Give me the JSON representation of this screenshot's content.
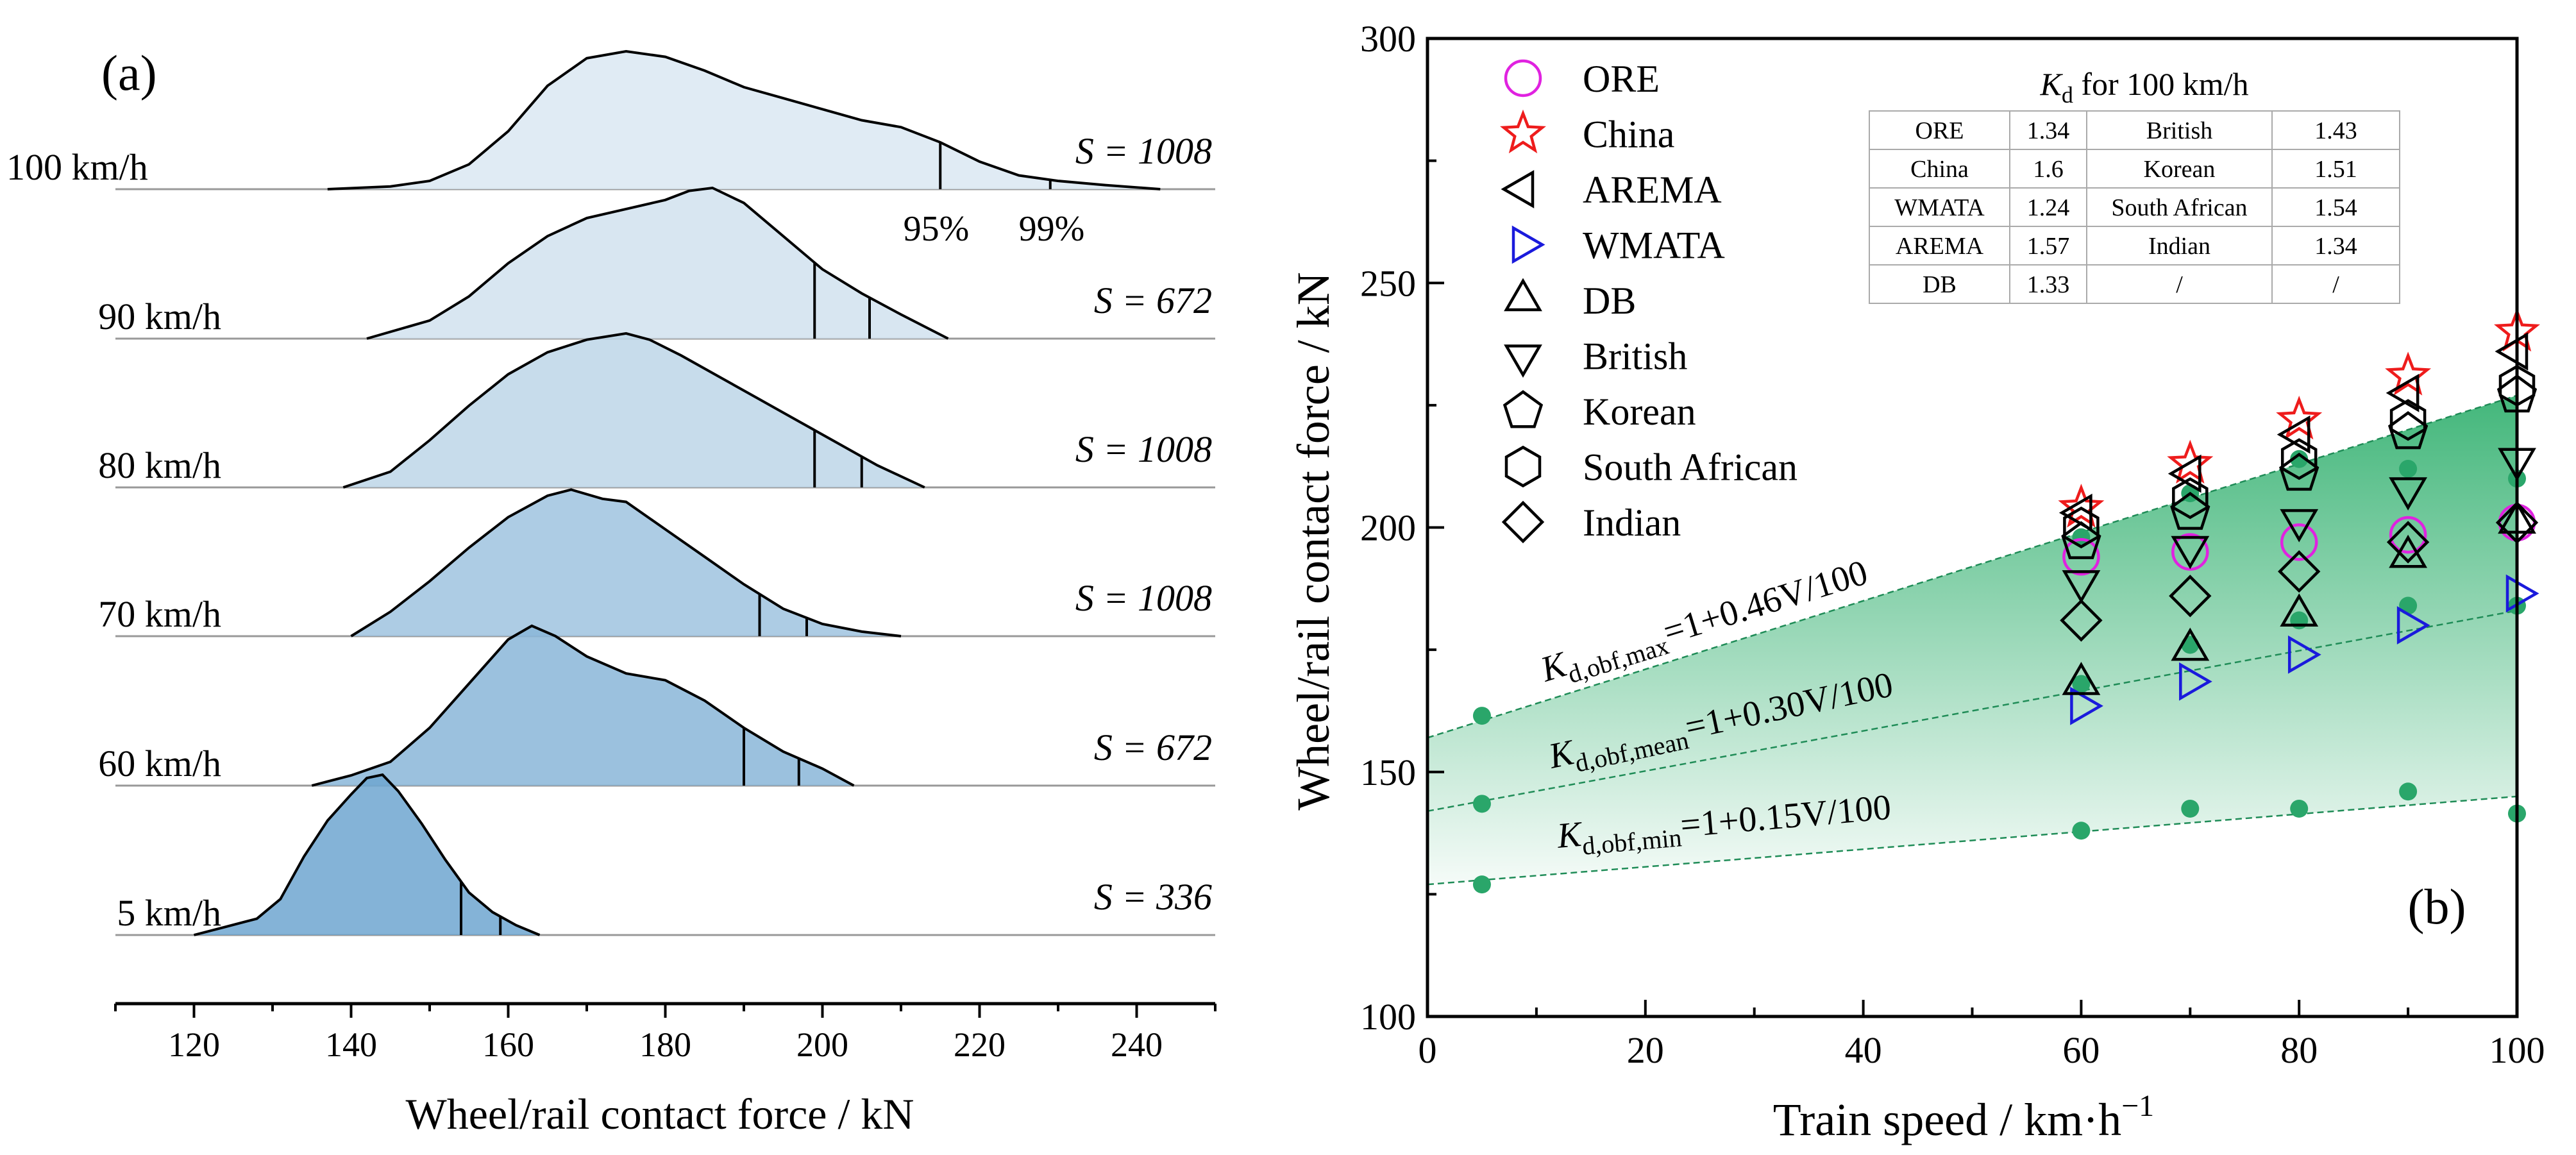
{
  "chart_data": [
    {
      "type": "area",
      "panel_label": "(a)",
      "xlabel": "Wheel/rail contact force / kN",
      "xlim": [
        110,
        250
      ],
      "xticks": [
        120,
        140,
        160,
        180,
        200,
        220,
        240
      ],
      "fill_colors": {
        "100": "#dbe8f2",
        "90": "#d1e2ee",
        "80": "#bdd6e8",
        "70": "#9fc3df",
        "60": "#89b6d8",
        "5": "#6fa6d0"
      },
      "percentile_labels": [
        "95%",
        "99%"
      ],
      "series": [
        {
          "name": "100 km/h",
          "S": "S = 1008",
          "range": [
            137,
            243
          ],
          "p95": 215,
          "p99": 229,
          "curve": [
            [
              137,
              0
            ],
            [
              145,
              0.02
            ],
            [
              150,
              0.06
            ],
            [
              155,
              0.18
            ],
            [
              160,
              0.42
            ],
            [
              165,
              0.75
            ],
            [
              170,
              0.95
            ],
            [
              175,
              1.0
            ],
            [
              180,
              0.96
            ],
            [
              185,
              0.86
            ],
            [
              190,
              0.74
            ],
            [
              195,
              0.66
            ],
            [
              200,
              0.58
            ],
            [
              205,
              0.5
            ],
            [
              210,
              0.45
            ],
            [
              215,
              0.34
            ],
            [
              220,
              0.2
            ],
            [
              225,
              0.1
            ],
            [
              230,
              0.06
            ],
            [
              236,
              0.03
            ],
            [
              243,
              0
            ]
          ]
        },
        {
          "name": "90 km/h",
          "S": "S = 672",
          "range": [
            142,
            216
          ],
          "p95": 199,
          "p99": 206,
          "curve": [
            [
              142,
              0
            ],
            [
              150,
              0.12
            ],
            [
              155,
              0.28
            ],
            [
              160,
              0.5
            ],
            [
              165,
              0.68
            ],
            [
              170,
              0.8
            ],
            [
              175,
              0.86
            ],
            [
              180,
              0.92
            ],
            [
              183,
              0.98
            ],
            [
              186,
              1.0
            ],
            [
              190,
              0.9
            ],
            [
              195,
              0.68
            ],
            [
              200,
              0.46
            ],
            [
              205,
              0.3
            ],
            [
              210,
              0.16
            ],
            [
              216,
              0
            ]
          ]
        },
        {
          "name": "80 km/h",
          "S": "S = 1008",
          "range": [
            139,
            213
          ],
          "p95": 199,
          "p99": 205,
          "curve": [
            [
              139,
              0
            ],
            [
              145,
              0.1
            ],
            [
              150,
              0.3
            ],
            [
              155,
              0.52
            ],
            [
              160,
              0.72
            ],
            [
              165,
              0.86
            ],
            [
              170,
              0.94
            ],
            [
              175,
              0.98
            ],
            [
              178,
              0.94
            ],
            [
              182,
              0.84
            ],
            [
              187,
              0.7
            ],
            [
              192,
              0.56
            ],
            [
              197,
              0.42
            ],
            [
              202,
              0.28
            ],
            [
              207,
              0.14
            ],
            [
              213,
              0
            ]
          ]
        },
        {
          "name": "70 km/h",
          "S": "S = 1008",
          "range": [
            140,
            210
          ],
          "p95": 192,
          "p99": 198,
          "curve": [
            [
              140,
              0
            ],
            [
              145,
              0.16
            ],
            [
              150,
              0.36
            ],
            [
              155,
              0.58
            ],
            [
              160,
              0.78
            ],
            [
              165,
              0.92
            ],
            [
              168,
              0.96
            ],
            [
              172,
              0.9
            ],
            [
              175,
              0.88
            ],
            [
              180,
              0.7
            ],
            [
              185,
              0.52
            ],
            [
              190,
              0.34
            ],
            [
              195,
              0.18
            ],
            [
              200,
              0.08
            ],
            [
              205,
              0.03
            ],
            [
              210,
              0
            ]
          ]
        },
        {
          "name": "60 km/h",
          "S": "S = 672",
          "range": [
            135,
            204
          ],
          "p95": 190,
          "p99": 197,
          "curve": [
            [
              135,
              0
            ],
            [
              140,
              0.06
            ],
            [
              145,
              0.14
            ],
            [
              150,
              0.34
            ],
            [
              155,
              0.6
            ],
            [
              160,
              0.86
            ],
            [
              163,
              0.94
            ],
            [
              166,
              0.88
            ],
            [
              170,
              0.76
            ],
            [
              175,
              0.66
            ],
            [
              180,
              0.62
            ],
            [
              185,
              0.5
            ],
            [
              190,
              0.34
            ],
            [
              195,
              0.2
            ],
            [
              200,
              0.1
            ],
            [
              204,
              0
            ]
          ]
        },
        {
          "name": "5 km/h",
          "S": "S = 336",
          "range": [
            120,
            164
          ],
          "p95": 154,
          "p99": 159,
          "curve": [
            [
              120,
              0
            ],
            [
              124,
              0.05
            ],
            [
              128,
              0.1
            ],
            [
              131,
              0.22
            ],
            [
              134,
              0.48
            ],
            [
              137,
              0.7
            ],
            [
              140,
              0.86
            ],
            [
              142,
              0.96
            ],
            [
              144,
              0.98
            ],
            [
              146,
              0.88
            ],
            [
              149,
              0.68
            ],
            [
              152,
              0.46
            ],
            [
              155,
              0.26
            ],
            [
              158,
              0.14
            ],
            [
              161,
              0.06
            ],
            [
              164,
              0
            ]
          ]
        }
      ]
    },
    {
      "type": "scatter",
      "panel_label": "(b)",
      "xlabel": "Train speed / km·h",
      "xlabel_exponent": "−1",
      "ylabel": "Wheel/rail contact force / kN",
      "xlim": [
        0,
        100
      ],
      "ylim": [
        100,
        300
      ],
      "xticks": [
        0,
        20,
        40,
        60,
        80,
        100
      ],
      "yticks": [
        100,
        150,
        200,
        250,
        300
      ],
      "observed_points": {
        "x": [
          5,
          5,
          5,
          60,
          60,
          60,
          70,
          70,
          70,
          80,
          80,
          80,
          90,
          90,
          90,
          100,
          100,
          100
        ],
        "y": [
          161.5,
          143.5,
          127,
          198,
          168,
          138,
          207,
          176,
          142.5,
          214,
          181,
          142.5,
          212,
          184,
          146,
          210,
          184,
          141.5
        ],
        "color": "#2aa66a"
      },
      "fit_lines": [
        {
          "name": "max",
          "label_base": "K",
          "label_sub": "d,obf,max",
          "label_rest": "=1+0.46V/100",
          "intercept_at_0": 157,
          "at_100": 227
        },
        {
          "name": "mean",
          "label_base": "K",
          "label_sub": "d,obf,mean",
          "label_rest": "=1+0.30V/100",
          "intercept_at_0": 142,
          "at_100": 183
        },
        {
          "name": "min",
          "label_base": "K",
          "label_sub": "d,obf,min",
          "label_rest": "=1+0.15V/100",
          "intercept_at_0": 127,
          "at_100": 145
        }
      ],
      "band_color": "#39b374",
      "standards": [
        {
          "name": "ORE",
          "marker": "circle",
          "color": "#e022e0",
          "x": [
            60,
            70,
            80,
            90,
            100
          ],
          "y": [
            194,
            195,
            197,
            198.5,
            201
          ]
        },
        {
          "name": "China",
          "marker": "star",
          "color": "#ee1c1c",
          "x": [
            60,
            70,
            80,
            90,
            100
          ],
          "y": [
            204,
            213,
            222,
            231,
            240
          ]
        },
        {
          "name": "AREMA",
          "marker": "triangle-left",
          "color": "#000000",
          "x": [
            60,
            70,
            80,
            90,
            100
          ],
          "y": [
            203,
            211,
            219,
            227.5,
            236
          ]
        },
        {
          "name": "WMATA",
          "marker": "triangle-right",
          "color": "#1a1adc",
          "x": [
            60,
            70,
            80,
            90,
            100
          ],
          "y": [
            163.5,
            168.5,
            174,
            180,
            186.5
          ]
        },
        {
          "name": "DB",
          "marker": "triangle-up",
          "color": "#000000",
          "x": [
            60,
            70,
            80,
            90,
            100
          ],
          "y": [
            168,
            175,
            182,
            194,
            201
          ]
        },
        {
          "name": "British",
          "marker": "triangle-down",
          "color": "#000000",
          "x": [
            60,
            70,
            80,
            90,
            100
          ],
          "y": [
            189,
            196,
            201.5,
            208,
            214
          ]
        },
        {
          "name": "Korean",
          "marker": "pentagon",
          "color": "#000000",
          "x": [
            60,
            70,
            80,
            90,
            100
          ],
          "y": [
            197,
            203,
            211,
            219.5,
            227
          ]
        },
        {
          "name": "South African",
          "marker": "hexagon",
          "color": "#000000",
          "x": [
            60,
            70,
            80,
            90,
            100
          ],
          "y": [
            200,
            206,
            214,
            222,
            229
          ]
        },
        {
          "name": "Indian",
          "marker": "diamond",
          "color": "#000000",
          "x": [
            60,
            70,
            80,
            90,
            100
          ],
          "y": [
            181,
            186,
            191,
            197,
            201
          ]
        }
      ],
      "inset_table": {
        "title_base": "K",
        "title_sub": "d",
        "title_rest": " for 100 km/h",
        "rows": [
          [
            "ORE",
            "1.34",
            "British",
            "1.43"
          ],
          [
            "China",
            "1.6",
            "Korean",
            "1.51"
          ],
          [
            "WMATA",
            "1.24",
            "South African",
            "1.54"
          ],
          [
            "AREMA",
            "1.57",
            "Indian",
            "1.34"
          ],
          [
            "DB",
            "1.33",
            "/",
            "/"
          ]
        ]
      }
    }
  ]
}
